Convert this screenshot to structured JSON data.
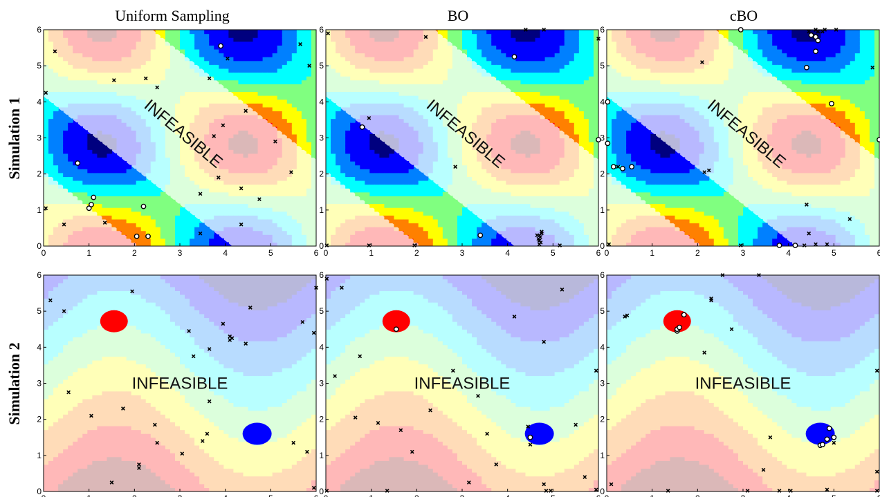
{
  "column_titles": [
    "Uniform Sampling",
    "BO",
    "cBO"
  ],
  "row_titles": [
    "Simulation 1",
    "Simulation 2"
  ],
  "infeasible_label": "INFEASIBLE",
  "tick_labels": [
    "0",
    "1",
    "2",
    "3",
    "4",
    "5",
    "6"
  ],
  "colors": {
    "contour_levels": [
      "#00007f",
      "#0000ff",
      "#0080ff",
      "#00ffff",
      "#80ff80",
      "#ffff00",
      "#ff8000",
      "#ff0000",
      "#7f0000"
    ],
    "infeasible_tint": "#ffffff",
    "eval_marker": "#000000",
    "best_marker_fill": "#ffffff"
  },
  "chart_data": [
    {
      "type": "contour",
      "simulation": "Simulation 1",
      "method": "Uniform Sampling",
      "xlim": [
        0,
        6
      ],
      "ylim": [
        0,
        6
      ],
      "crosses": [
        [
          0.05,
          1.05
        ],
        [
          0.25,
          5.4
        ],
        [
          0.05,
          4.25
        ],
        [
          0.45,
          0.6
        ],
        [
          1.35,
          0.65
        ],
        [
          1.55,
          4.6
        ],
        [
          2.25,
          4.65
        ],
        [
          2.5,
          4.4
        ],
        [
          3.45,
          0.35
        ],
        [
          3.45,
          1.45
        ],
        [
          3.75,
          3.05
        ],
        [
          3.85,
          1.9
        ],
        [
          3.95,
          3.35
        ],
        [
          3.65,
          4.65
        ],
        [
          4.05,
          5.2
        ],
        [
          4.35,
          1.6
        ],
        [
          4.35,
          0.6
        ],
        [
          4.45,
          3.75
        ],
        [
          4.75,
          1.3
        ],
        [
          5.1,
          2.9
        ],
        [
          5.45,
          2.05
        ],
        [
          5.65,
          5.6
        ],
        [
          5.85,
          5.0
        ]
      ],
      "circles": [
        [
          0.75,
          2.3
        ],
        [
          1.0,
          1.05
        ],
        [
          1.05,
          1.15
        ],
        [
          1.1,
          1.35
        ],
        [
          2.05,
          0.27
        ],
        [
          2.2,
          1.1
        ],
        [
          2.3,
          0.27
        ],
        [
          3.9,
          5.55
        ]
      ]
    },
    {
      "type": "contour",
      "simulation": "Simulation 1",
      "method": "BO",
      "xlim": [
        0,
        6
      ],
      "ylim": [
        0,
        6
      ],
      "crosses": [
        [
          0.02,
          0.02
        ],
        [
          0.05,
          5.9
        ],
        [
          0.95,
          0.02
        ],
        [
          0.95,
          3.55
        ],
        [
          1.95,
          0.02
        ],
        [
          2.2,
          5.8
        ],
        [
          2.85,
          2.2
        ],
        [
          4.4,
          6.0
        ],
        [
          4.8,
          6.0
        ],
        [
          4.75,
          0.35
        ],
        [
          4.7,
          0.3
        ],
        [
          4.72,
          0.25
        ],
        [
          4.68,
          0.2
        ],
        [
          4.7,
          0.15
        ],
        [
          4.73,
          0.1
        ],
        [
          4.7,
          0.05
        ],
        [
          4.75,
          0.4
        ],
        [
          4.65,
          0.3
        ],
        [
          5.15,
          0.02
        ],
        [
          6.0,
          5.75
        ]
      ],
      "circles": [
        [
          0.8,
          3.3
        ],
        [
          3.4,
          0.3
        ],
        [
          4.15,
          5.25
        ],
        [
          6.0,
          2.95
        ]
      ]
    },
    {
      "type": "contour",
      "simulation": "Simulation 1",
      "method": "cBO",
      "xlim": [
        0,
        6
      ],
      "ylim": [
        0,
        6
      ],
      "crosses": [
        [
          0.05,
          0.05
        ],
        [
          0.25,
          2.2
        ],
        [
          2.1,
          5.1
        ],
        [
          2.15,
          2.05
        ],
        [
          2.25,
          2.1
        ],
        [
          2.95,
          0.02
        ],
        [
          4.45,
          5.95
        ],
        [
          4.6,
          6.0
        ],
        [
          4.65,
          5.95
        ],
        [
          4.75,
          5.95
        ],
        [
          4.8,
          6.0
        ],
        [
          5.05,
          6.0
        ],
        [
          4.4,
          1.15
        ],
        [
          4.45,
          0.35
        ],
        [
          4.35,
          0.02
        ],
        [
          4.6,
          0.05
        ],
        [
          4.85,
          0.05
        ],
        [
          5.35,
          0.75
        ],
        [
          5.85,
          4.95
        ]
      ],
      "circles": [
        [
          0.02,
          4.0
        ],
        [
          0.02,
          2.85
        ],
        [
          0.15,
          2.2
        ],
        [
          0.35,
          2.15
        ],
        [
          0.55,
          2.2
        ],
        [
          2.95,
          6.0
        ],
        [
          3.8,
          0.02
        ],
        [
          4.15,
          0.02
        ],
        [
          4.4,
          4.95
        ],
        [
          4.5,
          5.85
        ],
        [
          4.6,
          5.8
        ],
        [
          4.65,
          5.7
        ],
        [
          4.6,
          5.4
        ],
        [
          4.95,
          3.95
        ],
        [
          6.0,
          2.95
        ]
      ]
    },
    {
      "type": "contour",
      "simulation": "Simulation 2",
      "method": "Uniform Sampling",
      "xlim": [
        0,
        6
      ],
      "ylim": [
        0,
        6
      ],
      "crosses": [
        [
          0.15,
          5.3
        ],
        [
          0.45,
          5.0
        ],
        [
          0.55,
          2.75
        ],
        [
          1.05,
          2.1
        ],
        [
          1.5,
          0.25
        ],
        [
          1.75,
          2.3
        ],
        [
          1.95,
          5.55
        ],
        [
          2.1,
          0.75
        ],
        [
          2.1,
          0.65
        ],
        [
          2.45,
          1.85
        ],
        [
          2.5,
          1.35
        ],
        [
          3.05,
          1.05
        ],
        [
          3.2,
          4.45
        ],
        [
          3.3,
          3.75
        ],
        [
          3.5,
          1.4
        ],
        [
          3.6,
          1.6
        ],
        [
          3.65,
          3.95
        ],
        [
          3.65,
          2.5
        ],
        [
          3.95,
          4.65
        ],
        [
          4.1,
          4.2
        ],
        [
          4.15,
          4.25
        ],
        [
          4.1,
          4.3
        ],
        [
          4.45,
          4.1
        ],
        [
          4.55,
          5.1
        ],
        [
          5.5,
          1.35
        ],
        [
          5.7,
          4.7
        ],
        [
          5.8,
          1.1
        ],
        [
          5.95,
          4.4
        ],
        [
          6.0,
          5.65
        ],
        [
          5.95,
          0.1
        ]
      ],
      "circles": []
    },
    {
      "type": "contour",
      "simulation": "Simulation 2",
      "method": "BO",
      "xlim": [
        0,
        6
      ],
      "ylim": [
        0,
        6
      ],
      "crosses": [
        [
          0.02,
          0.02
        ],
        [
          0.02,
          5.9
        ],
        [
          0.35,
          5.65
        ],
        [
          0.2,
          3.2
        ],
        [
          0.65,
          2.05
        ],
        [
          0.75,
          3.75
        ],
        [
          1.15,
          1.9
        ],
        [
          1.35,
          0.02
        ],
        [
          1.65,
          1.7
        ],
        [
          1.9,
          1.1
        ],
        [
          2.3,
          2.25
        ],
        [
          2.8,
          3.35
        ],
        [
          3.15,
          0.25
        ],
        [
          3.35,
          2.65
        ],
        [
          3.55,
          1.6
        ],
        [
          3.75,
          0.75
        ],
        [
          4.15,
          4.85
        ],
        [
          4.45,
          1.8
        ],
        [
          4.5,
          1.3
        ],
        [
          4.8,
          0.2
        ],
        [
          4.85,
          0.02
        ],
        [
          4.95,
          0.02
        ],
        [
          4.8,
          4.15
        ],
        [
          5.2,
          5.6
        ],
        [
          5.5,
          1.85
        ],
        [
          5.7,
          0.4
        ],
        [
          5.95,
          3.35
        ],
        [
          5.95,
          0.05
        ]
      ],
      "circles": [
        [
          1.55,
          4.5
        ],
        [
          4.5,
          1.5
        ]
      ]
    },
    {
      "type": "contour",
      "simulation": "Simulation 2",
      "method": "cBO",
      "xlim": [
        0,
        6
      ],
      "ylim": [
        0,
        6
      ],
      "crosses": [
        [
          0.1,
          0.2
        ],
        [
          0.4,
          4.85
        ],
        [
          0.45,
          4.88
        ],
        [
          1.35,
          0.02
        ],
        [
          2.15,
          3.85
        ],
        [
          2.3,
          5.35
        ],
        [
          2.3,
          5.3
        ],
        [
          2.55,
          6.0
        ],
        [
          2.75,
          4.5
        ],
        [
          3.1,
          0.02
        ],
        [
          3.35,
          6.0
        ],
        [
          3.6,
          1.5
        ],
        [
          3.45,
          0.6
        ],
        [
          3.8,
          0.02
        ],
        [
          4.05,
          0.02
        ],
        [
          4.85,
          0.05
        ],
        [
          5.0,
          1.35
        ],
        [
          5.95,
          3.35
        ],
        [
          5.95,
          0.55
        ],
        [
          5.95,
          0.02
        ]
      ],
      "circles": [
        [
          1.55,
          4.45
        ],
        [
          1.55,
          4.5
        ],
        [
          1.6,
          4.55
        ],
        [
          1.7,
          4.9
        ],
        [
          4.7,
          1.28
        ],
        [
          4.75,
          1.3
        ],
        [
          4.85,
          1.45
        ],
        [
          4.9,
          1.75
        ],
        [
          5.0,
          1.5
        ]
      ]
    }
  ]
}
